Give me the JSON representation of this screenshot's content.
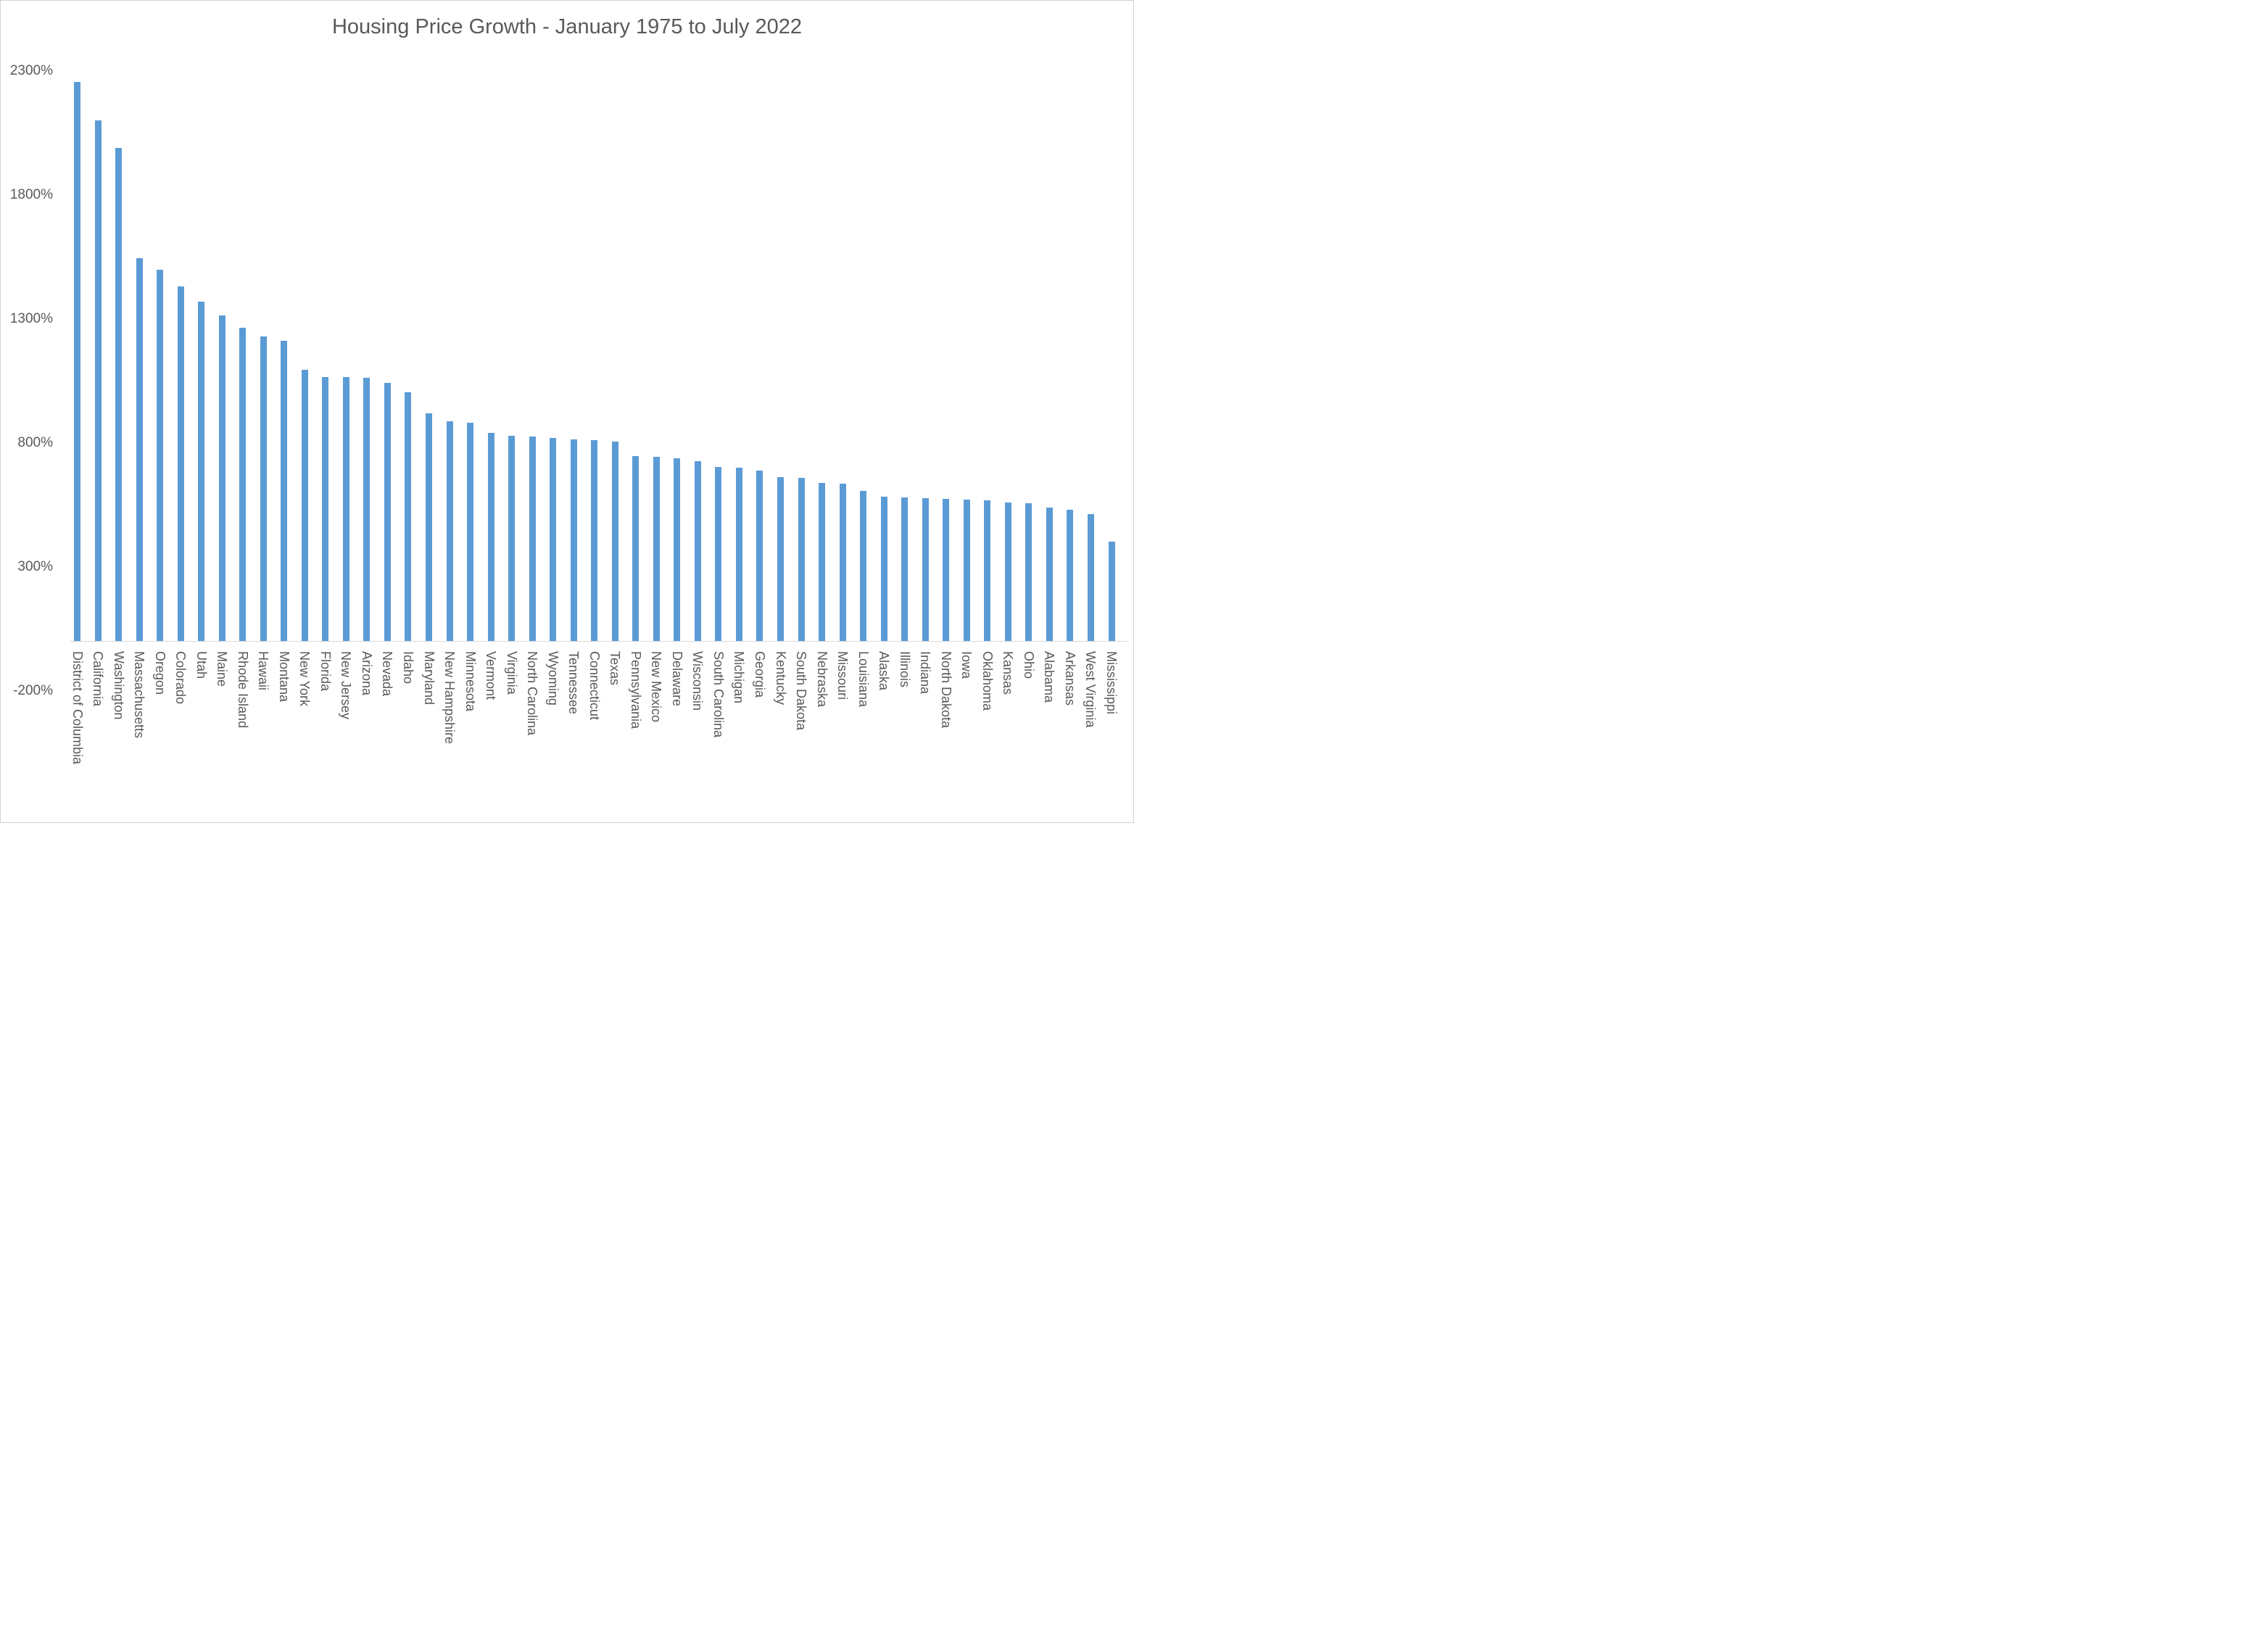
{
  "chart_data": {
    "type": "bar",
    "title": "Housing Price Growth - January 1975 to July 2022",
    "xlabel": "",
    "ylabel": "",
    "unit": "%",
    "ylim": [
      -200,
      2300
    ],
    "yticks": [
      2300,
      1800,
      1300,
      800,
      300,
      -200
    ],
    "ytick_labels": [
      "2300%",
      "1800%",
      "1300%",
      "800%",
      "300%",
      "-200%"
    ],
    "grid": false,
    "legend": "none",
    "bar_color": "#5b9bd5",
    "text_color": "#595959",
    "axis_color": "#d9d9d9",
    "categories": [
      "District of Columbia",
      "California",
      "Washington",
      "Massachusetts",
      "Oregon",
      "Colorado",
      "Utah",
      "Maine",
      "Rhode Island",
      "Hawaii",
      "Montana",
      "New York",
      "Florida",
      "New Jersey",
      "Arizona",
      "Nevada",
      "Idaho",
      "Maryland",
      "New Hampshire",
      "Minnesota",
      "Vermont",
      "Virginia",
      "North Carolina",
      "Wyoming",
      "Tennessee",
      "Connecticut",
      "Texas",
      "Pennsylvania",
      "New Mexico",
      "Delaware",
      "Wisconsin",
      "South Carolina",
      "Michigan",
      "Georgia",
      "Kentucky",
      "South Dakota",
      "Nebraska",
      "Missouri",
      "Louisiana",
      "Alaska",
      "Illinois",
      "Indiana",
      "North Dakota",
      "Iowa",
      "Oklahoma",
      "Kansas",
      "Ohio",
      "Alabama",
      "Arkansas",
      "West Virginia",
      "Mississippi"
    ],
    "values": [
      2255,
      2100,
      1988,
      1545,
      1497,
      1430,
      1367,
      1313,
      1262,
      1227,
      1211,
      1095,
      1065,
      1063,
      1060,
      1040,
      1002,
      917,
      886,
      879,
      840,
      828,
      824,
      819,
      814,
      811,
      805,
      746,
      744,
      738,
      726,
      703,
      700,
      687,
      662,
      658,
      636,
      634,
      604,
      582,
      578,
      575,
      574,
      570,
      566,
      559,
      557,
      538,
      530,
      513,
      400
    ]
  }
}
